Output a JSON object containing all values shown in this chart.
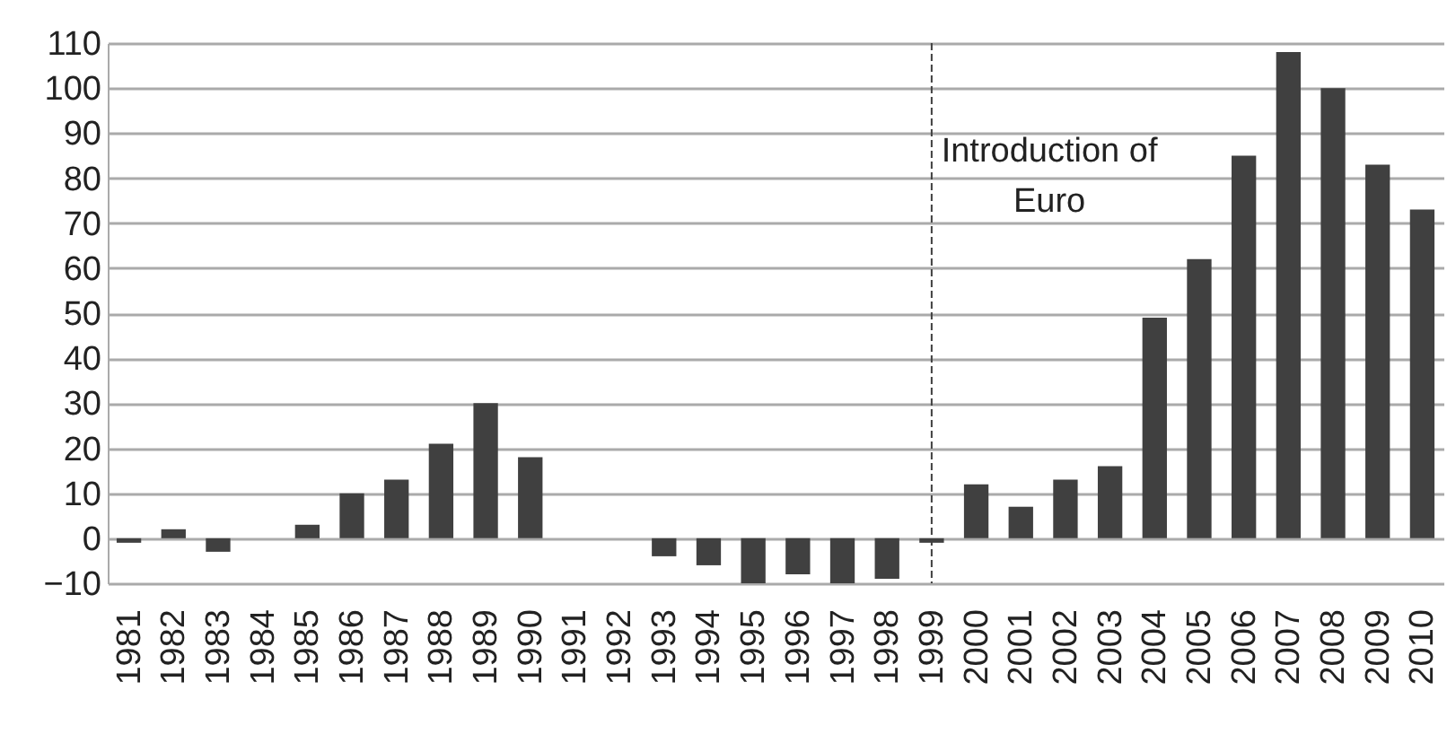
{
  "chart_data": {
    "type": "bar",
    "categories": [
      "1981",
      "1982",
      "1983",
      "1984",
      "1985",
      "1986",
      "1987",
      "1988",
      "1989",
      "1990",
      "1991",
      "1992",
      "1993",
      "1994",
      "1995",
      "1996",
      "1997",
      "1998",
      "1999",
      "2000",
      "2001",
      "2002",
      "2003",
      "2004",
      "2005",
      "2006",
      "2007",
      "2008",
      "2009",
      "2010"
    ],
    "values": [
      -1,
      2,
      -3,
      0,
      3,
      10,
      13,
      21,
      30,
      18,
      0,
      0,
      -4,
      -6,
      -10,
      -8,
      -10,
      -9,
      -1,
      12,
      7,
      13,
      16,
      49,
      62,
      85,
      108,
      100,
      83,
      73
    ],
    "color": "#404040",
    "ylim": [
      -10,
      110
    ],
    "yticks": [
      -10,
      0,
      10,
      20,
      30,
      40,
      50,
      60,
      70,
      80,
      90,
      100,
      110
    ],
    "grid": "y",
    "ref_lines": [
      {
        "axis": "x",
        "value": "1999",
        "line_style": "dashed",
        "color": "#404040"
      }
    ],
    "annotations": [
      "Introduction of\nEuro"
    ]
  }
}
